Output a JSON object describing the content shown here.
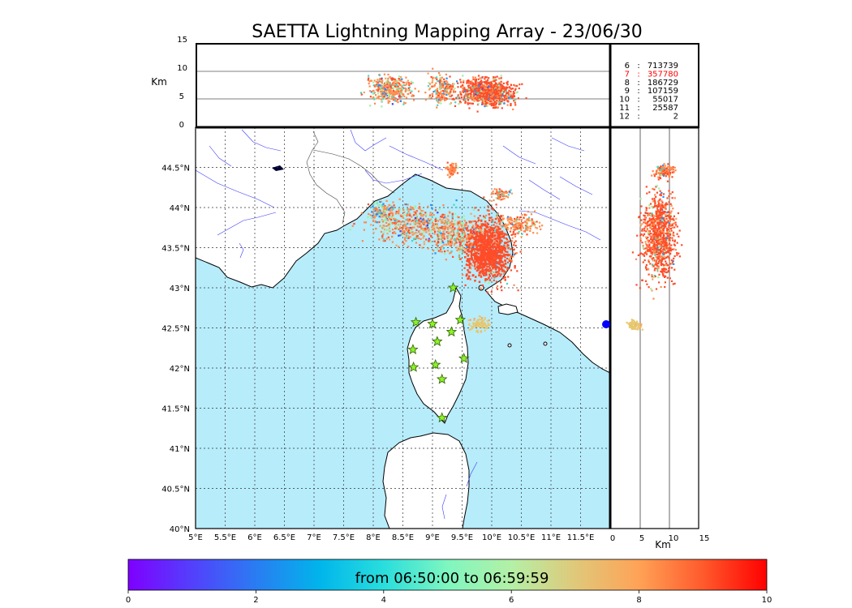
{
  "chart_data": {
    "type": "scatter",
    "title": "SAETTA Lightning Mapping Array - 23/06/30",
    "panels": {
      "map": {
        "xlim": [
          5,
          12.0
        ],
        "ylim": [
          40,
          45.0
        ],
        "x_ticks": [
          "5°E",
          "5.5°E",
          "6°E",
          "6.5°E",
          "7°E",
          "7.5°E",
          "8°E",
          "8.5°E",
          "9°E",
          "9.5°E",
          "10°E",
          "10.5°E",
          "11°E",
          "11.5°E"
        ],
        "y_ticks": [
          "40°N",
          "40.5°N",
          "41°N",
          "41.5°N",
          "42°N",
          "42.5°N",
          "43°N",
          "43.5°N",
          "44°N",
          "44.5°N"
        ],
        "grid": true
      },
      "altitude_vs_lon": {
        "ylabel": "Km",
        "ylim": [
          0,
          15
        ],
        "y_ticks": [
          "0",
          "5",
          "10",
          "15"
        ]
      },
      "altitude_vs_lat": {
        "xlabel": "Km",
        "xlim": [
          0,
          15
        ],
        "x_ticks": [
          "0",
          "5",
          "10",
          "15"
        ]
      }
    },
    "stations": [
      {
        "lon": 9.35,
        "lat": 43.0
      },
      {
        "lon": 8.72,
        "lat": 42.57
      },
      {
        "lon": 9.0,
        "lat": 42.55
      },
      {
        "lon": 9.47,
        "lat": 42.6
      },
      {
        "lon": 9.32,
        "lat": 42.45
      },
      {
        "lon": 9.08,
        "lat": 42.33
      },
      {
        "lon": 8.67,
        "lat": 42.23
      },
      {
        "lon": 9.53,
        "lat": 42.12
      },
      {
        "lon": 9.05,
        "lat": 42.04
      },
      {
        "lon": 8.68,
        "lat": 42.01
      },
      {
        "lon": 9.16,
        "lat": 41.86
      },
      {
        "lon": 9.16,
        "lat": 41.38
      }
    ],
    "station_counts": [
      {
        "station": "6",
        "sep": ":",
        "count": "713739",
        "highlight": false
      },
      {
        "station": "7",
        "sep": ":",
        "count": "357780",
        "highlight": true
      },
      {
        "station": "8",
        "sep": ":",
        "count": "186729",
        "highlight": false
      },
      {
        "station": "9",
        "sep": ":",
        "count": "107159",
        "highlight": false
      },
      {
        "station": "10",
        "sep": ":",
        "count": "55017",
        "highlight": false
      },
      {
        "station": "11",
        "sep": ":",
        "count": "25587",
        "highlight": false
      },
      {
        "station": "12",
        "sep": ":",
        "count": "2",
        "highlight": false
      }
    ],
    "colorbar": {
      "label": "from 06:50:00 to 06:59:59",
      "range": [
        0,
        10
      ],
      "ticks": [
        "0",
        "2",
        "4",
        "6",
        "8",
        "10"
      ]
    }
  },
  "colors": {
    "sea": "#b7ecfb",
    "land": "#ffffff",
    "coast": "#000000",
    "rivers": "#3a3aff",
    "station_fill": "#8cf22a",
    "station_edge": "#2f5f00",
    "highlight_text": "#ff0000",
    "normal_text": "#000000",
    "source_colors": [
      "#ff4d29",
      "#ff8a4d",
      "#f7a35a",
      "#9ef0a0",
      "#40d9c8",
      "#1e90ff",
      "#3f3ff0",
      "#e6c870"
    ]
  }
}
